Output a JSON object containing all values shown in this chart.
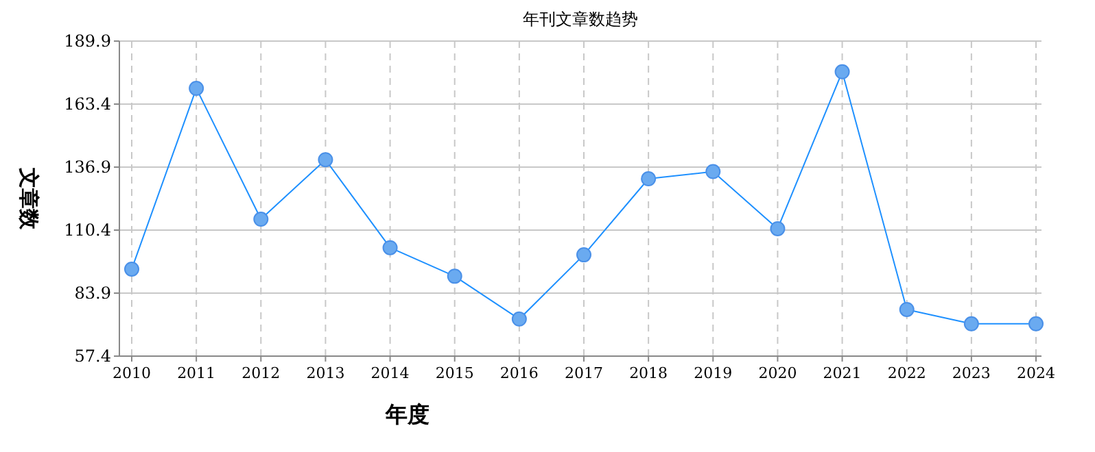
{
  "chart_data": {
    "type": "line",
    "title": "年刊文章数趋势",
    "xlabel": "年度",
    "ylabel": "文章数",
    "categories": [
      "2010",
      "2011",
      "2012",
      "2013",
      "2014",
      "2015",
      "2016",
      "2017",
      "2018",
      "2019",
      "2020",
      "2021",
      "2022",
      "2023",
      "2024"
    ],
    "series": [
      {
        "color": "#1e90ff",
        "values": [
          94,
          170,
          115,
          140,
          103,
          91,
          73,
          100,
          132,
          135,
          111,
          177,
          77,
          71,
          71
        ]
      }
    ],
    "ylim": [
      57.4,
      189.9
    ],
    "yticks": [
      57.4,
      83.9,
      110.4,
      136.9,
      163.4,
      189.9
    ],
    "grid": true,
    "marker": "circle",
    "line_style": "solid"
  }
}
